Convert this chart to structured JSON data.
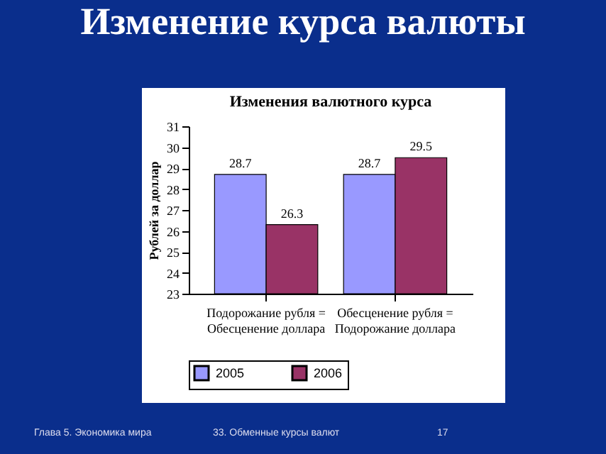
{
  "chart_data": {
    "type": "bar",
    "title": "Изменение курса валюты",
    "subtitle": "Изменения валютного курса",
    "ylabel": "Рублей за доллар",
    "categories": [
      "Подорожание рубля = Обесценение доллара",
      "Обесценение рубля = Подорожание доллара"
    ],
    "series": [
      {
        "name": "2005",
        "color": "#9999ff",
        "values": [
          28.7,
          28.7
        ]
      },
      {
        "name": "2006",
        "color": "#993366",
        "values": [
          26.3,
          29.5
        ]
      }
    ],
    "ylim": [
      23,
      31
    ],
    "yticks": [
      23,
      24,
      25,
      26,
      27,
      28,
      29,
      30,
      31
    ],
    "grid": false,
    "legend": "bottom",
    "data_labels": true,
    "annotations": [
      "Глава 5. Экономика мира",
      "33. Обменные курсы валют",
      "17"
    ]
  }
}
